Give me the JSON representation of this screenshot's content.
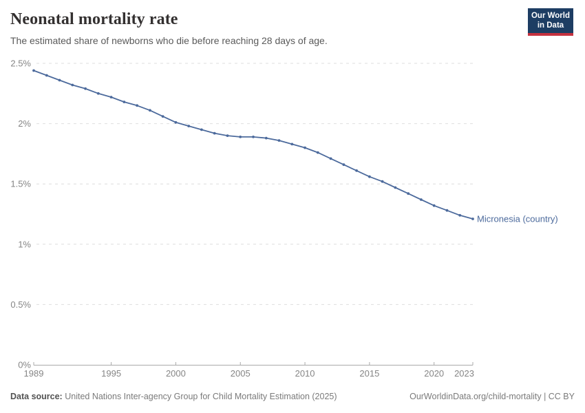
{
  "header": {
    "title": "Neonatal mortality rate",
    "subtitle": "The estimated share of newborns who die before reaching 28 days of age.",
    "logo_line1": "Our World",
    "logo_line2": "in Data"
  },
  "chart_data": {
    "type": "line",
    "title": "Neonatal mortality rate",
    "subtitle": "The estimated share of newborns who die before reaching 28 days of age.",
    "unit": "%",
    "xlim": [
      1989,
      2023
    ],
    "ylim": [
      0,
      2.5
    ],
    "grid": "horizontal-dashed",
    "legend_position": "end-of-line-label",
    "x_ticks": [
      1989,
      1995,
      2000,
      2005,
      2010,
      2015,
      2020,
      2023
    ],
    "y_ticks": [
      {
        "value": 0,
        "label": "0%"
      },
      {
        "value": 0.5,
        "label": "0.5%"
      },
      {
        "value": 1,
        "label": "1%"
      },
      {
        "value": 1.5,
        "label": "1.5%"
      },
      {
        "value": 2,
        "label": "2%"
      },
      {
        "value": 2.5,
        "label": "2.5%"
      }
    ],
    "series": [
      {
        "name": "Micronesia (country)",
        "color": "#4c6a9c",
        "x": [
          1989,
          1990,
          1991,
          1992,
          1993,
          1994,
          1995,
          1996,
          1997,
          1998,
          1999,
          2000,
          2001,
          2002,
          2003,
          2004,
          2005,
          2006,
          2007,
          2008,
          2009,
          2010,
          2011,
          2012,
          2013,
          2014,
          2015,
          2016,
          2017,
          2018,
          2019,
          2020,
          2021,
          2022,
          2023
        ],
        "values": [
          2.44,
          2.4,
          2.36,
          2.32,
          2.29,
          2.25,
          2.22,
          2.18,
          2.15,
          2.11,
          2.06,
          2.01,
          1.98,
          1.95,
          1.92,
          1.9,
          1.89,
          1.89,
          1.88,
          1.86,
          1.83,
          1.8,
          1.76,
          1.71,
          1.66,
          1.61,
          1.56,
          1.52,
          1.47,
          1.42,
          1.37,
          1.32,
          1.28,
          1.24,
          1.21
        ]
      }
    ]
  },
  "footer": {
    "source_label": "Data source:",
    "source_text": "United Nations Inter-agency Group for Child Mortality Estimation (2025)",
    "link_text": "OurWorldinData.org/child-mortality | CC BY"
  },
  "colors": {
    "line": "#4c6a9c",
    "axis_text": "#858585",
    "grid": "#dedede",
    "axis_line": "#a9a9a9",
    "logo_bg": "#1d3d63",
    "logo_red": "#c5313f"
  }
}
